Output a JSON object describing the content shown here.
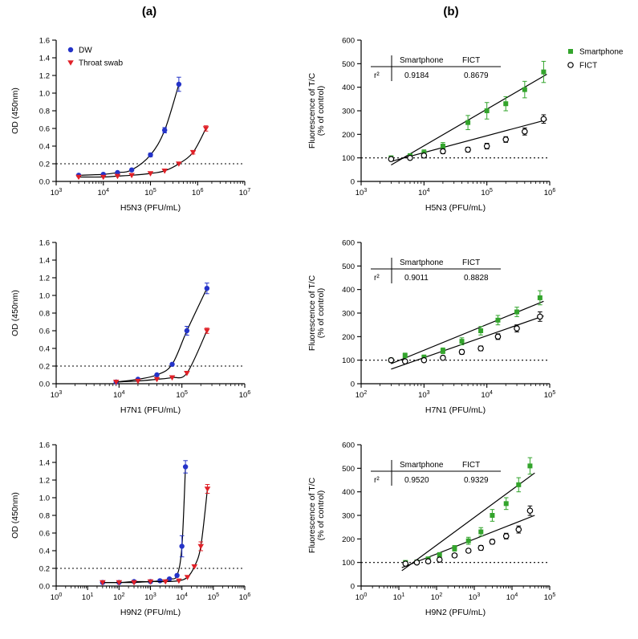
{
  "figure": {
    "panel_a_label": "(a)",
    "panel_b_label": "(b)"
  },
  "colors": {
    "dw": "#2433c8",
    "throat_swab": "#e02128",
    "smartphone": "#33a42c",
    "fict": "#000000"
  },
  "chart_data": [
    {
      "type": "scatter",
      "panel": "a",
      "xlabel": "H5N3 (PFU/mL)",
      "ylabel": [
        "OD (450nm)"
      ],
      "xscale": "log",
      "xlim_exp": [
        3,
        7
      ],
      "xticks_exp": [
        3,
        4,
        5,
        6,
        7
      ],
      "ylim": [
        0,
        1.6
      ],
      "yticks": [
        0,
        0.2,
        0.4,
        0.6,
        0.8,
        1.0,
        1.2,
        1.4,
        1.6
      ],
      "ytick_decimals": 1,
      "threshold_y": 0.2,
      "legend_pos": "inside-top-left",
      "series": [
        {
          "name": "DW",
          "marker": "circle",
          "colorKey": "dw",
          "curve": "smooth",
          "x": [
            3000,
            10000,
            20000,
            40000,
            100000,
            200000,
            400000
          ],
          "y": [
            0.07,
            0.08,
            0.1,
            0.13,
            0.3,
            0.58,
            1.1
          ],
          "yerr": [
            0,
            0,
            0,
            0,
            0.02,
            0.03,
            0.08
          ]
        },
        {
          "name": "Throat swab",
          "marker": "triangle-down",
          "colorKey": "throat_swab",
          "curve": "smooth",
          "x": [
            3000,
            10000,
            20000,
            40000,
            100000,
            200000,
            400000,
            800000,
            1500000
          ],
          "y": [
            0.05,
            0.05,
            0.06,
            0.07,
            0.09,
            0.12,
            0.2,
            0.33,
            0.6
          ],
          "yerr": [
            0,
            0,
            0,
            0,
            0,
            0,
            0,
            0.02,
            0.03
          ]
        }
      ]
    },
    {
      "type": "scatter",
      "panel": "b",
      "xlabel": "H5N3 (PFU/mL)",
      "ylabel": [
        "Fluorescence of T/C",
        "(% of control)"
      ],
      "xscale": "log",
      "xlim_exp": [
        3,
        6
      ],
      "xticks_exp": [
        3,
        4,
        5,
        6
      ],
      "ylim": [
        0,
        600
      ],
      "yticks": [
        0,
        100,
        200,
        300,
        400,
        500,
        600
      ],
      "ytick_decimals": 0,
      "threshold_y": 100,
      "legend_pos": "right",
      "inset": {
        "col0": "r²",
        "col1": "Smartphone",
        "col2": "FICT",
        "v1": "0.9184",
        "v2": "0.8679"
      },
      "fit_lines": [
        {
          "x": [
            3000,
            900000
          ],
          "y": [
            70,
            455
          ]
        },
        {
          "x": [
            3000,
            900000
          ],
          "y": [
            85,
            262
          ]
        }
      ],
      "series": [
        {
          "name": "Smartphone",
          "marker": "square",
          "colorKey": "smartphone",
          "x": [
            3000,
            6000,
            10000,
            20000,
            50000,
            100000,
            200000,
            400000,
            800000
          ],
          "y": [
            100,
            108,
            122,
            150,
            250,
            300,
            330,
            390,
            465
          ],
          "yerr": [
            8,
            10,
            12,
            15,
            30,
            35,
            30,
            35,
            45
          ]
        },
        {
          "name": "FICT",
          "marker": "circle-open",
          "colorKey": "fict",
          "x": [
            3000,
            6000,
            10000,
            20000,
            50000,
            100000,
            200000,
            400000,
            800000
          ],
          "y": [
            95,
            100,
            110,
            128,
            135,
            150,
            178,
            212,
            265
          ],
          "yerr": [
            5,
            5,
            8,
            10,
            10,
            12,
            12,
            15,
            18
          ]
        }
      ]
    },
    {
      "type": "scatter",
      "panel": "a",
      "xlabel": "H7N1 (PFU/mL)",
      "ylabel": [
        "OD (450nm)"
      ],
      "xscale": "log",
      "xlim_exp": [
        3,
        6
      ],
      "xticks_exp": [
        3,
        4,
        5,
        6
      ],
      "ylim": [
        0,
        1.6
      ],
      "yticks": [
        0,
        0.2,
        0.4,
        0.6,
        0.8,
        1.0,
        1.2,
        1.4,
        1.6
      ],
      "ytick_decimals": 1,
      "threshold_y": 0.2,
      "legend_pos": "none",
      "series": [
        {
          "name": "DW",
          "marker": "circle",
          "colorKey": "dw",
          "curve": "smooth",
          "x": [
            9000,
            20000,
            40000,
            70000,
            120000,
            250000
          ],
          "y": [
            0.02,
            0.05,
            0.1,
            0.22,
            0.6,
            1.08
          ],
          "yerr": [
            0,
            0,
            0,
            0,
            0.05,
            0.06
          ]
        },
        {
          "name": "Throat swab",
          "marker": "triangle-down",
          "colorKey": "throat_swab",
          "curve": "smooth",
          "x": [
            9000,
            20000,
            40000,
            70000,
            120000,
            250000
          ],
          "y": [
            0.02,
            0.03,
            0.05,
            0.07,
            0.12,
            0.6
          ],
          "yerr": [
            0,
            0,
            0,
            0,
            0,
            0.03
          ]
        }
      ]
    },
    {
      "type": "scatter",
      "panel": "b",
      "xlabel": "H7N1 (PFU/mL)",
      "ylabel": [
        "Fluorescence of T/C",
        "(% of control)"
      ],
      "xscale": "log",
      "xlim_exp": [
        2,
        5
      ],
      "xticks_exp": [
        2,
        3,
        4,
        5
      ],
      "ylim": [
        0,
        600
      ],
      "yticks": [
        0,
        100,
        200,
        300,
        400,
        500,
        600
      ],
      "ytick_decimals": 0,
      "threshold_y": 100,
      "legend_pos": "none",
      "inset": {
        "col0": "r²",
        "col1": "Smartphone",
        "col2": "FICT",
        "v1": "0.9011",
        "v2": "0.8828"
      },
      "fit_lines": [
        {
          "x": [
            300,
            80000
          ],
          "y": [
            85,
            350
          ]
        },
        {
          "x": [
            300,
            80000
          ],
          "y": [
            62,
            288
          ]
        }
      ],
      "series": [
        {
          "name": "Smartphone",
          "marker": "square",
          "colorKey": "smartphone",
          "x": [
            300,
            500,
            1000,
            2000,
            4000,
            8000,
            15000,
            30000,
            70000
          ],
          "y": [
            100,
            120,
            112,
            140,
            180,
            225,
            270,
            305,
            365
          ],
          "yerr": [
            8,
            10,
            10,
            12,
            15,
            18,
            20,
            20,
            30
          ]
        },
        {
          "name": "FICT",
          "marker": "circle-open",
          "colorKey": "fict",
          "x": [
            300,
            500,
            1000,
            2000,
            4000,
            8000,
            15000,
            30000,
            70000
          ],
          "y": [
            100,
            95,
            100,
            110,
            135,
            150,
            200,
            235,
            285
          ],
          "yerr": [
            5,
            5,
            6,
            8,
            10,
            10,
            12,
            15,
            20
          ]
        }
      ]
    },
    {
      "type": "scatter",
      "panel": "a",
      "xlabel": "H9N2 (PFU/mL)",
      "ylabel": [
        "OD (450nm)"
      ],
      "xscale": "log",
      "xlim_exp": [
        0,
        6
      ],
      "xticks_exp": [
        0,
        1,
        2,
        3,
        4,
        5,
        6
      ],
      "ylim": [
        0,
        1.6
      ],
      "yticks": [
        0,
        0.2,
        0.4,
        0.6,
        0.8,
        1.0,
        1.2,
        1.4,
        1.6
      ],
      "ytick_decimals": 1,
      "threshold_y": 0.2,
      "legend_pos": "none",
      "series": [
        {
          "name": "DW",
          "marker": "circle",
          "colorKey": "dw",
          "curve": "smooth",
          "x": [
            30,
            100,
            300,
            1000,
            2000,
            4000,
            7000,
            10000,
            13000
          ],
          "y": [
            0.04,
            0.04,
            0.05,
            0.05,
            0.06,
            0.08,
            0.12,
            0.45,
            1.35
          ],
          "yerr": [
            0,
            0,
            0,
            0,
            0,
            0,
            0,
            0.12,
            0.07
          ]
        },
        {
          "name": "Throat swab",
          "marker": "triangle-down",
          "colorKey": "throat_swab",
          "curve": "smooth",
          "x": [
            30,
            100,
            300,
            1000,
            3000,
            8000,
            15000,
            25000,
            40000,
            65000
          ],
          "y": [
            0.04,
            0.04,
            0.04,
            0.05,
            0.05,
            0.06,
            0.1,
            0.22,
            0.45,
            1.1
          ],
          "yerr": [
            0,
            0,
            0,
            0,
            0,
            0,
            0,
            0,
            0.05,
            0.05
          ]
        }
      ]
    },
    {
      "type": "scatter",
      "panel": "b",
      "xlabel": "H9N2 (PFU/mL)",
      "ylabel": [
        "Fluorescence of T/C",
        "(% of control)"
      ],
      "xscale": "log",
      "xlim_exp": [
        0,
        5
      ],
      "xticks_exp": [
        0,
        1,
        2,
        3,
        4,
        5
      ],
      "ylim": [
        0,
        600
      ],
      "yticks": [
        0,
        100,
        200,
        300,
        400,
        500,
        600
      ],
      "ytick_decimals": 0,
      "threshold_y": 100,
      "legend_pos": "none",
      "inset": {
        "col0": "r²",
        "col1": "Smartphone",
        "col2": "FICT",
        "v1": "0.9520",
        "v2": "0.9329"
      },
      "fit_lines": [
        {
          "x": [
            12,
            40000
          ],
          "y": [
            65,
            480
          ]
        },
        {
          "x": [
            12,
            40000
          ],
          "y": [
            78,
            300
          ]
        }
      ],
      "series": [
        {
          "name": "Smartphone",
          "marker": "square",
          "colorKey": "smartphone",
          "x": [
            15,
            30,
            60,
            120,
            300,
            700,
            1500,
            3000,
            7000,
            15000,
            30000
          ],
          "y": [
            100,
            102,
            115,
            132,
            160,
            192,
            230,
            300,
            350,
            430,
            510
          ],
          "yerr": [
            5,
            5,
            8,
            10,
            12,
            15,
            18,
            25,
            25,
            30,
            35
          ]
        },
        {
          "name": "FICT",
          "marker": "circle-open",
          "colorKey": "fict",
          "x": [
            15,
            30,
            60,
            120,
            300,
            700,
            1500,
            3000,
            7000,
            15000,
            30000
          ],
          "y": [
            95,
            100,
            105,
            112,
            130,
            150,
            162,
            188,
            212,
            240,
            320
          ],
          "yerr": [
            4,
            5,
            5,
            6,
            8,
            8,
            10,
            10,
            12,
            15,
            20
          ]
        }
      ]
    }
  ]
}
